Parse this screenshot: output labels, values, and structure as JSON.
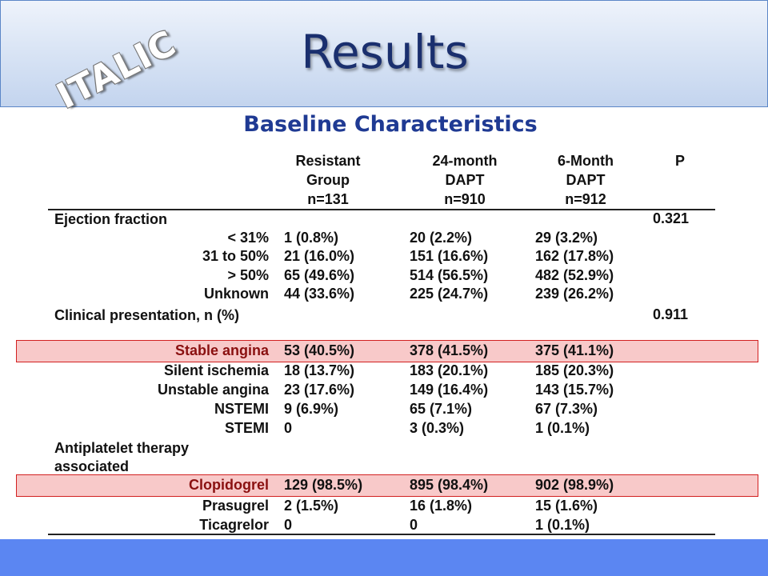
{
  "header": {
    "logo_text": "ITALIC",
    "title": "Results"
  },
  "subtitle": "Baseline Characteristics",
  "columns": [
    {
      "line1": "Resistant",
      "line2": "Group",
      "line3": "n=131"
    },
    {
      "line1": "24-month",
      "line2": "DAPT",
      "line3": "n=910"
    },
    {
      "line1": "6-Month",
      "line2": "DAPT",
      "line3": "n=912"
    },
    {
      "line1": "P",
      "line2": "",
      "line3": ""
    }
  ],
  "sections": [
    {
      "label": "Ejection fraction",
      "p": "0.321"
    },
    {
      "label": "Clinical presentation, n (%)",
      "p": "0.911"
    },
    {
      "label": "Antiplatelet therapy associated",
      "p": ""
    }
  ],
  "rows": [
    {
      "label": "< 31%",
      "c1": "1 (0.8%)",
      "c2": "20 (2.2%)",
      "c3": "29 (3.2%)"
    },
    {
      "label": "31 to 50%",
      "c1": "21 (16.0%)",
      "c2": "151 (16.6%)",
      "c3": "162 (17.8%)"
    },
    {
      "label": "> 50%",
      "c1": "65 (49.6%)",
      "c2": "514 (56.5%)",
      "c3": "482 (52.9%)"
    },
    {
      "label": "Unknown",
      "c1": "44 (33.6%)",
      "c2": "225 (24.7%)",
      "c3": "239 (26.2%)"
    },
    {
      "label": "Stable angina",
      "c1": "53 (40.5%)",
      "c2": "378 (41.5%)",
      "c3": "375 (41.1%)",
      "highlight": true
    },
    {
      "label": "Silent ischemia",
      "c1": "18 (13.7%)",
      "c2": "183 (20.1%)",
      "c3": "185 (20.3%)"
    },
    {
      "label": "Unstable angina",
      "c1": "23 (17.6%)",
      "c2": "149 (16.4%)",
      "c3": "143 (15.7%)"
    },
    {
      "label": "NSTEMI",
      "c1": "9 (6.9%)",
      "c2": "65 (7.1%)",
      "c3": "67 (7.3%)"
    },
    {
      "label": "STEMI",
      "c1": "0",
      "c2": "3 (0.3%)",
      "c3": "1 (0.1%)"
    },
    {
      "label": "Clopidogrel",
      "c1": "129 (98.5%)",
      "c2": "895 (98.4%)",
      "c3": "902 (98.9%)",
      "highlight": true
    },
    {
      "label": "Prasugrel",
      "c1": "2 (1.5%)",
      "c2": "16 (1.8%)",
      "c3": "15 (1.6%)"
    },
    {
      "label": "Ticagrelor",
      "c1": "0",
      "c2": "0",
      "c3": "1 (0.1%)"
    }
  ],
  "colors": {
    "title": "#1a2f6e",
    "subtitle": "#1f3a93",
    "highlight_fill": "#f8c9c9",
    "highlight_border": "#d22020",
    "footer": "#5b86f2"
  }
}
